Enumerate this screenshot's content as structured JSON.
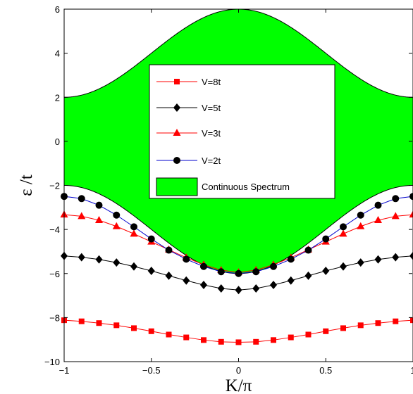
{
  "chart_data": {
    "type": "line",
    "xlabel": "K/π",
    "ylabel": "ε /t",
    "xlim": [
      -1,
      1
    ],
    "ylim": [
      -10,
      6
    ],
    "x_ticks": [
      "−1",
      "−0.5",
      "0",
      "0.5",
      "1"
    ],
    "x_tick_values": [
      -1,
      -0.5,
      0,
      0.5,
      1
    ],
    "y_ticks": [
      "−10",
      "−8",
      "−6",
      "−4",
      "−2",
      "0",
      "2",
      "4",
      "6"
    ],
    "y_tick_values": [
      -10,
      -8,
      -6,
      -4,
      -2,
      0,
      2,
      4,
      6
    ],
    "grid": false,
    "legend_position": "center",
    "continuum": {
      "name": "Continuous Spectrum",
      "color": "#00ff00",
      "upper": "2 + 4cos²(Kπ/2)",
      "lower": "-2 - 4cos²(Kπ/2)"
    },
    "x": [
      -1,
      -0.9,
      -0.8,
      -0.7,
      -0.6,
      -0.5,
      -0.4,
      -0.3,
      -0.2,
      -0.1,
      0,
      0.1,
      0.2,
      0.3,
      0.4,
      0.5,
      0.6,
      0.7,
      0.8,
      0.9,
      1
    ],
    "series": [
      {
        "name": "V=8t",
        "color": "#ff0000",
        "marker": "square",
        "values": [
          -8.12,
          -8.17,
          -8.25,
          -8.35,
          -8.48,
          -8.62,
          -8.77,
          -8.9,
          -9.02,
          -9.1,
          -9.12,
          -9.1,
          -9.02,
          -8.9,
          -8.77,
          -8.62,
          -8.48,
          -8.35,
          -8.25,
          -8.17,
          -8.12
        ]
      },
      {
        "name": "V=5t",
        "color": "#000000",
        "marker": "diamond",
        "values": [
          -5.2,
          -5.26,
          -5.36,
          -5.5,
          -5.68,
          -5.88,
          -6.1,
          -6.32,
          -6.52,
          -6.68,
          -6.75,
          -6.68,
          -6.52,
          -6.32,
          -6.1,
          -5.88,
          -5.68,
          -5.5,
          -5.36,
          -5.26,
          -5.2
        ]
      },
      {
        "name": "V=3t",
        "color": "#ff0000",
        "marker": "triangle",
        "values": [
          -3.33,
          -3.4,
          -3.58,
          -3.86,
          -4.2,
          -4.56,
          -4.92,
          -5.28,
          -5.6,
          -5.85,
          -5.95,
          -5.85,
          -5.6,
          -5.28,
          -4.92,
          -4.56,
          -4.2,
          -3.86,
          -3.58,
          -3.4,
          -3.33
        ]
      },
      {
        "name": "V=2t",
        "color": "#0000cc",
        "marker": "circle",
        "values": [
          -2.5,
          -2.6,
          -2.9,
          -3.35,
          -3.88,
          -4.43,
          -4.94,
          -5.35,
          -5.68,
          -5.92,
          -6.0,
          -5.92,
          -5.68,
          -5.35,
          -4.94,
          -4.43,
          -3.88,
          -3.35,
          -2.9,
          -2.6,
          -2.5
        ]
      }
    ]
  }
}
